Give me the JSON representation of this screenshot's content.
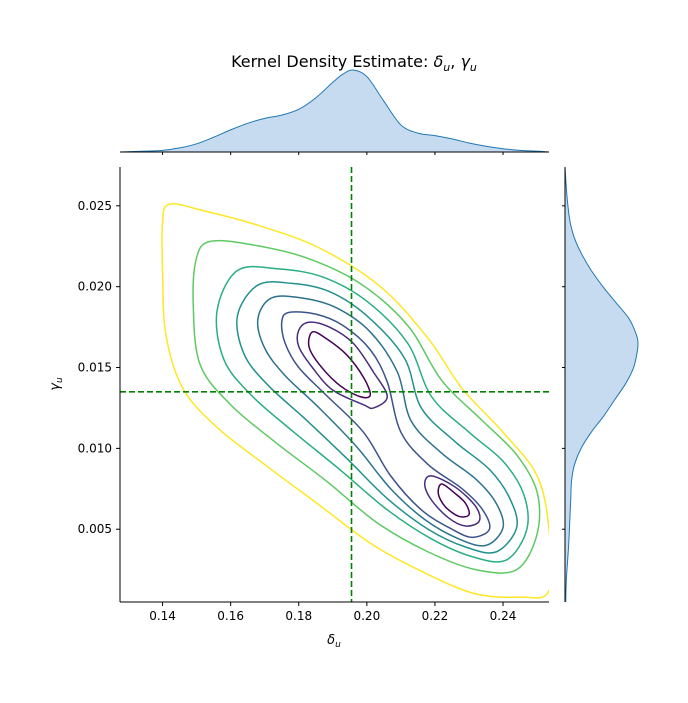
{
  "chart_data": {
    "type": "kde-jointplot",
    "title": {
      "main": "Kernel Density Estimate: ",
      "x_sym": "δ",
      "y_sym": "γ",
      "sub": "u",
      "sep": ", "
    },
    "xlabel": {
      "sym": "δ",
      "sub": "u"
    },
    "ylabel": {
      "sym": "γ",
      "sub": "u"
    },
    "xlim": [
      0.1275,
      0.2535
    ],
    "ylim": [
      0.0005,
      0.0274
    ],
    "xticks": [
      0.14,
      0.16,
      0.18,
      0.2,
      0.22,
      0.24
    ],
    "xtick_labels": [
      "0.14",
      "0.16",
      "0.18",
      "0.20",
      "0.22",
      "0.24"
    ],
    "yticks": [
      0.005,
      0.01,
      0.015,
      0.02,
      0.025
    ],
    "ytick_labels": [
      "0.005",
      "0.010",
      "0.015",
      "0.020",
      "0.025"
    ],
    "reference_lines": {
      "x": 0.1955,
      "y": 0.0135,
      "color": "#008000",
      "style": "dashed"
    },
    "contour_colors": [
      "#440154",
      "#472d7b",
      "#3b528b",
      "#2c728e",
      "#21918c",
      "#28ae80",
      "#5ec962",
      "#addc30",
      "#fde725"
    ],
    "contour_levels": [
      {
        "level": 1,
        "color": "#440154",
        "points": [
          [
            0.184,
            0.0172
          ],
          [
            0.188,
            0.0168
          ],
          [
            0.194,
            0.0158
          ],
          [
            0.199,
            0.0144
          ],
          [
            0.201,
            0.0133
          ],
          [
            0.198,
            0.0132
          ],
          [
            0.192,
            0.0139
          ],
          [
            0.186,
            0.0152
          ],
          [
            0.183,
            0.0163
          ]
        ]
      },
      {
        "level": 1,
        "color": "#440154",
        "points": [
          [
            0.222,
            0.0078
          ],
          [
            0.226,
            0.0072
          ],
          [
            0.229,
            0.0066
          ],
          [
            0.23,
            0.0059
          ],
          [
            0.227,
            0.0058
          ],
          [
            0.223,
            0.0064
          ],
          [
            0.221,
            0.0072
          ]
        ]
      },
      {
        "level": 2,
        "color": "#472d7b",
        "points": [
          [
            0.183,
            0.0178
          ],
          [
            0.189,
            0.0175
          ],
          [
            0.196,
            0.0165
          ],
          [
            0.202,
            0.0147
          ],
          [
            0.206,
            0.0132
          ],
          [
            0.202,
            0.0125
          ],
          [
            0.199,
            0.0127
          ],
          [
            0.19,
            0.0136
          ],
          [
            0.184,
            0.015
          ],
          [
            0.18,
            0.0163
          ],
          [
            0.18,
            0.0173
          ]
        ]
      },
      {
        "level": 2,
        "color": "#472d7b",
        "points": [
          [
            0.219,
            0.0083
          ],
          [
            0.226,
            0.0076
          ],
          [
            0.232,
            0.0064
          ],
          [
            0.233,
            0.0055
          ],
          [
            0.229,
            0.0052
          ],
          [
            0.224,
            0.0057
          ],
          [
            0.219,
            0.0068
          ],
          [
            0.217,
            0.0078
          ]
        ]
      },
      {
        "level": 3,
        "color": "#3b528b",
        "points": [
          [
            0.177,
            0.0184
          ],
          [
            0.185,
            0.0183
          ],
          [
            0.193,
            0.0176
          ],
          [
            0.201,
            0.0161
          ],
          [
            0.206,
            0.0141
          ],
          [
            0.21,
            0.011
          ],
          [
            0.218,
            0.009
          ],
          [
            0.228,
            0.0075
          ],
          [
            0.234,
            0.0062
          ],
          [
            0.236,
            0.005
          ],
          [
            0.231,
            0.0045
          ],
          [
            0.225,
            0.005
          ],
          [
            0.216,
            0.0062
          ],
          [
            0.207,
            0.0083
          ],
          [
            0.199,
            0.011
          ],
          [
            0.188,
            0.0133
          ],
          [
            0.18,
            0.015
          ],
          [
            0.176,
            0.0165
          ],
          [
            0.175,
            0.0178
          ]
        ]
      },
      {
        "level": 4,
        "color": "#2c728e",
        "points": [
          [
            0.172,
            0.0193
          ],
          [
            0.181,
            0.0193
          ],
          [
            0.191,
            0.0187
          ],
          [
            0.201,
            0.0172
          ],
          [
            0.209,
            0.0147
          ],
          [
            0.213,
            0.0117
          ],
          [
            0.222,
            0.0097
          ],
          [
            0.232,
            0.0081
          ],
          [
            0.238,
            0.0066
          ],
          [
            0.24,
            0.0051
          ],
          [
            0.235,
            0.004
          ],
          [
            0.227,
            0.0044
          ],
          [
            0.217,
            0.0056
          ],
          [
            0.207,
            0.0075
          ],
          [
            0.197,
            0.0101
          ],
          [
            0.186,
            0.0125
          ],
          [
            0.176,
            0.0145
          ],
          [
            0.17,
            0.0162
          ],
          [
            0.168,
            0.018
          ]
        ]
      },
      {
        "level": 5,
        "color": "#21918c",
        "points": [
          [
            0.168,
            0.0201
          ],
          [
            0.178,
            0.0202
          ],
          [
            0.189,
            0.0197
          ],
          [
            0.2,
            0.0182
          ],
          [
            0.211,
            0.0156
          ],
          [
            0.216,
            0.0125
          ],
          [
            0.226,
            0.0104
          ],
          [
            0.236,
            0.0087
          ],
          [
            0.242,
            0.0069
          ],
          [
            0.244,
            0.0051
          ],
          [
            0.238,
            0.0036
          ],
          [
            0.229,
            0.0039
          ],
          [
            0.218,
            0.005
          ],
          [
            0.206,
            0.0069
          ],
          [
            0.194,
            0.0094
          ],
          [
            0.182,
            0.0118
          ],
          [
            0.171,
            0.0139
          ],
          [
            0.164,
            0.0158
          ],
          [
            0.162,
            0.0182
          ]
        ]
      },
      {
        "level": 6,
        "color": "#28ae80",
        "points": [
          [
            0.162,
            0.021
          ],
          [
            0.174,
            0.0211
          ],
          [
            0.187,
            0.0206
          ],
          [
            0.2,
            0.0191
          ],
          [
            0.212,
            0.0165
          ],
          [
            0.219,
            0.0132
          ],
          [
            0.23,
            0.011
          ],
          [
            0.24,
            0.0092
          ],
          [
            0.246,
            0.0072
          ],
          [
            0.247,
            0.005
          ],
          [
            0.241,
            0.0031
          ],
          [
            0.231,
            0.0033
          ],
          [
            0.219,
            0.0044
          ],
          [
            0.206,
            0.0062
          ],
          [
            0.192,
            0.0087
          ],
          [
            0.178,
            0.0111
          ],
          [
            0.166,
            0.0133
          ],
          [
            0.158,
            0.0155
          ],
          [
            0.156,
            0.0185
          ]
        ]
      },
      {
        "level": 7,
        "color": "#5ec962",
        "points": [
          [
            0.154,
            0.0228
          ],
          [
            0.166,
            0.0226
          ],
          [
            0.182,
            0.0218
          ],
          [
            0.198,
            0.0202
          ],
          [
            0.212,
            0.0176
          ],
          [
            0.222,
            0.0142
          ],
          [
            0.234,
            0.0117
          ],
          [
            0.244,
            0.0096
          ],
          [
            0.25,
            0.0073
          ],
          [
            0.25,
            0.0047
          ],
          [
            0.244,
            0.0025
          ],
          [
            0.232,
            0.0025
          ],
          [
            0.218,
            0.0036
          ],
          [
            0.203,
            0.0054
          ],
          [
            0.188,
            0.008
          ],
          [
            0.173,
            0.0104
          ],
          [
            0.16,
            0.0127
          ],
          [
            0.151,
            0.0152
          ],
          [
            0.149,
            0.019
          ],
          [
            0.15,
            0.0218
          ]
        ]
      },
      {
        "level": 8,
        "color": "#fde725",
        "points": [
          [
            0.142,
            0.0251
          ],
          [
            0.152,
            0.0247
          ],
          [
            0.168,
            0.0238
          ],
          [
            0.186,
            0.0224
          ],
          [
            0.204,
            0.02
          ],
          [
            0.218,
            0.0168
          ],
          [
            0.228,
            0.0137
          ],
          [
            0.24,
            0.011
          ],
          [
            0.25,
            0.0083
          ],
          [
            0.2535,
            0.005
          ],
          [
            0.2535,
            0.0012
          ],
          [
            0.245,
            0.0008
          ],
          [
            0.232,
            0.001
          ],
          [
            0.218,
            0.0022
          ],
          [
            0.202,
            0.004
          ],
          [
            0.186,
            0.0065
          ],
          [
            0.17,
            0.009
          ],
          [
            0.156,
            0.0113
          ],
          [
            0.146,
            0.0137
          ],
          [
            0.141,
            0.017
          ],
          [
            0.14,
            0.021
          ],
          [
            0.14,
            0.024
          ]
        ]
      }
    ],
    "marginal_x": {
      "x": [
        0.1275,
        0.135,
        0.14,
        0.145,
        0.15,
        0.155,
        0.16,
        0.165,
        0.17,
        0.175,
        0.18,
        0.185,
        0.19,
        0.193,
        0.196,
        0.2,
        0.205,
        0.21,
        0.215,
        0.22,
        0.225,
        0.23,
        0.235,
        0.24,
        0.245,
        0.25,
        0.2535
      ],
      "density": [
        0.0,
        0.01,
        0.02,
        0.05,
        0.1,
        0.18,
        0.27,
        0.35,
        0.41,
        0.45,
        0.52,
        0.66,
        0.85,
        0.95,
        1.0,
        0.92,
        0.62,
        0.33,
        0.23,
        0.2,
        0.16,
        0.11,
        0.07,
        0.04,
        0.02,
        0.01,
        0.0
      ]
    },
    "marginal_y": {
      "y": [
        0.0005,
        0.002,
        0.004,
        0.006,
        0.007,
        0.008,
        0.009,
        0.01,
        0.011,
        0.012,
        0.013,
        0.014,
        0.015,
        0.016,
        0.0165,
        0.017,
        0.018,
        0.019,
        0.02,
        0.021,
        0.022,
        0.023,
        0.024,
        0.025,
        0.026,
        0.0274
      ],
      "density": [
        0.01,
        0.02,
        0.05,
        0.07,
        0.08,
        0.09,
        0.13,
        0.22,
        0.36,
        0.53,
        0.68,
        0.83,
        0.94,
        0.99,
        1.0,
        0.98,
        0.88,
        0.7,
        0.52,
        0.36,
        0.23,
        0.13,
        0.07,
        0.04,
        0.02,
        0.0
      ]
    },
    "fill_color": "#c6dbef",
    "line_color": "#1f77b4"
  }
}
